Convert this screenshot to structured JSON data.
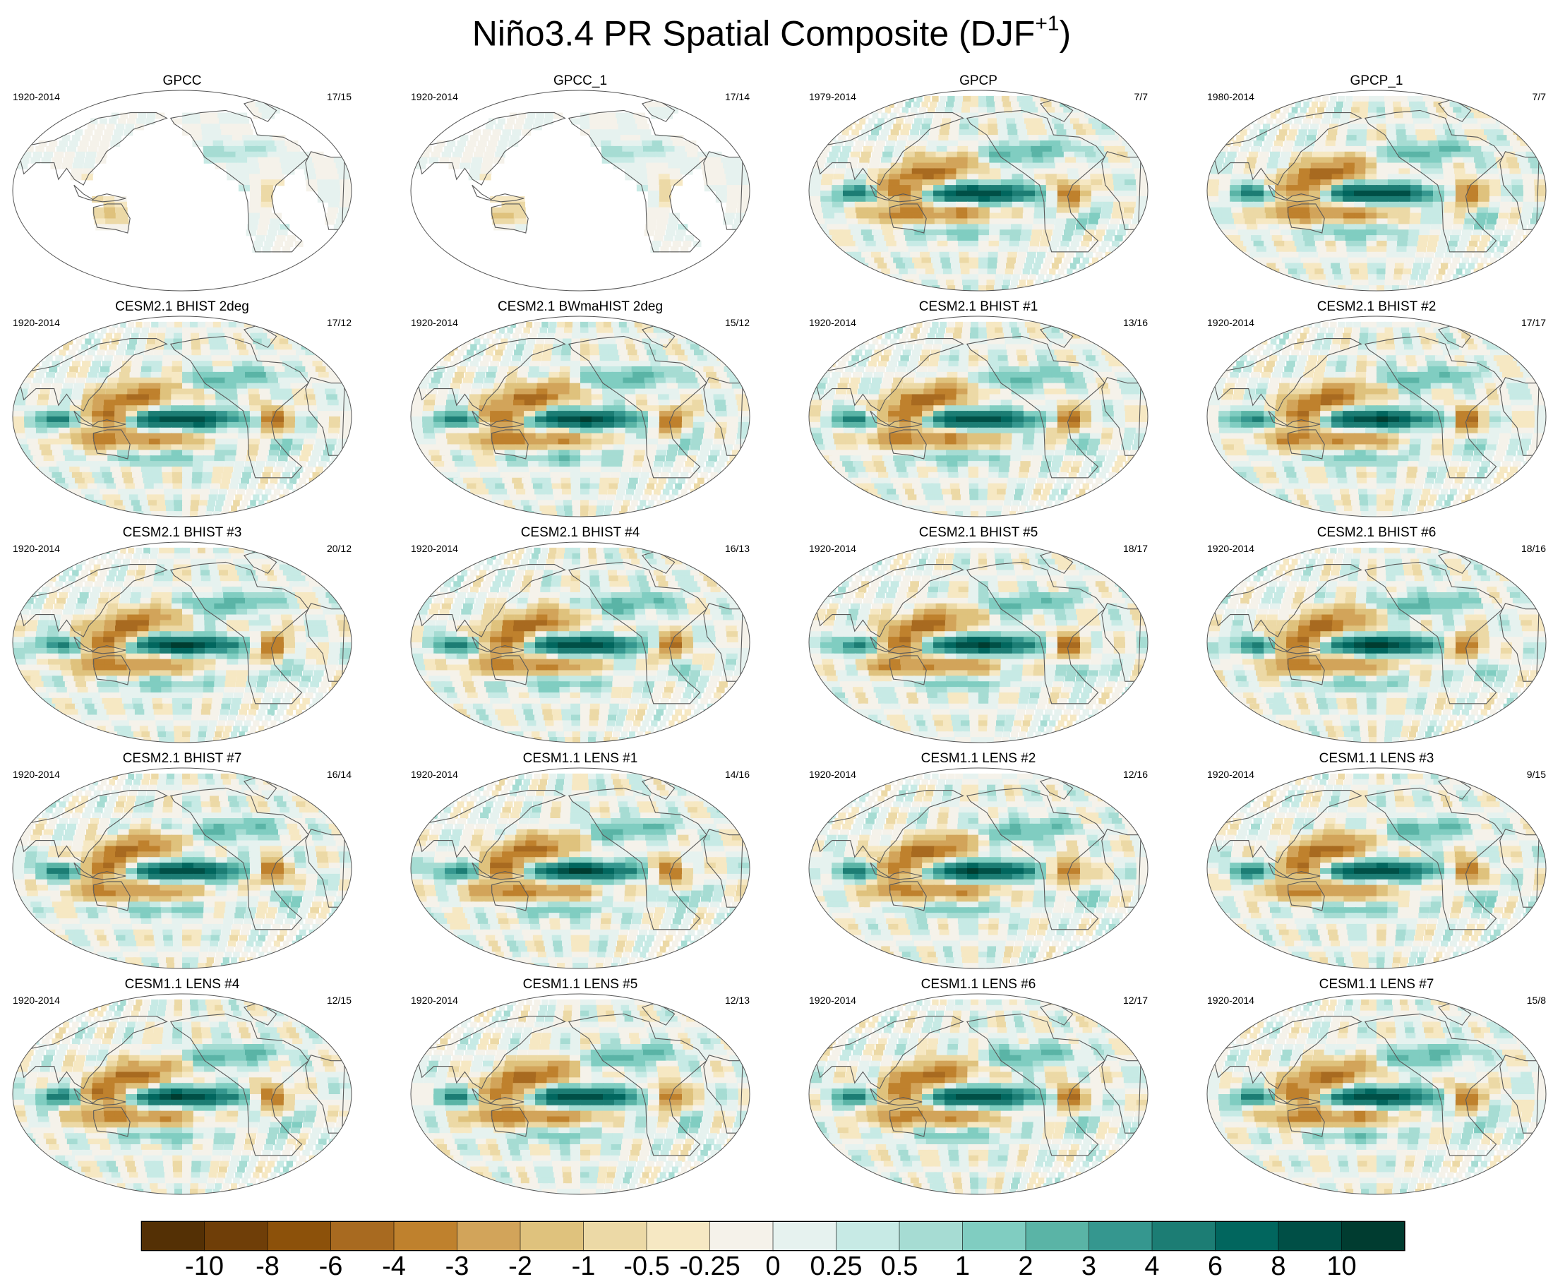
{
  "title": {
    "text": "Niño3.4 PR Spatial Composite (DJF",
    "superscript": "+1",
    "close": ")"
  },
  "panels": [
    {
      "title": "GPCC",
      "period": "1920-2014",
      "count": "17/15",
      "kind": "land"
    },
    {
      "title": "GPCC_1",
      "period": "1920-2014",
      "count": "17/14",
      "kind": "land"
    },
    {
      "title": "GPCP",
      "period": "1979-2014",
      "count": "7/7",
      "kind": "full"
    },
    {
      "title": "GPCP_1",
      "period": "1980-2014",
      "count": "7/7",
      "kind": "full"
    },
    {
      "title": "CESM2.1 BHIST 2deg",
      "period": "1920-2014",
      "count": "17/12",
      "kind": "full"
    },
    {
      "title": "CESM2.1 BWmaHIST 2deg",
      "period": "1920-2014",
      "count": "15/12",
      "kind": "full"
    },
    {
      "title": "CESM2.1 BHIST #1",
      "period": "1920-2014",
      "count": "13/16",
      "kind": "full"
    },
    {
      "title": "CESM2.1 BHIST #2",
      "period": "1920-2014",
      "count": "17/17",
      "kind": "full"
    },
    {
      "title": "CESM2.1 BHIST #3",
      "period": "1920-2014",
      "count": "20/12",
      "kind": "full"
    },
    {
      "title": "CESM2.1 BHIST #4",
      "period": "1920-2014",
      "count": "16/13",
      "kind": "full"
    },
    {
      "title": "CESM2.1 BHIST #5",
      "period": "1920-2014",
      "count": "18/17",
      "kind": "full"
    },
    {
      "title": "CESM2.1 BHIST #6",
      "period": "1920-2014",
      "count": "18/16",
      "kind": "full"
    },
    {
      "title": "CESM2.1 BHIST #7",
      "period": "1920-2014",
      "count": "16/14",
      "kind": "full"
    },
    {
      "title": "CESM1.1 LENS #1",
      "period": "1920-2014",
      "count": "14/16",
      "kind": "full"
    },
    {
      "title": "CESM1.1 LENS #2",
      "period": "1920-2014",
      "count": "12/16",
      "kind": "full"
    },
    {
      "title": "CESM1.1 LENS #3",
      "period": "1920-2014",
      "count": "9/15",
      "kind": "full"
    },
    {
      "title": "CESM1.1 LENS #4",
      "period": "1920-2014",
      "count": "12/15",
      "kind": "full"
    },
    {
      "title": "CESM1.1 LENS #5",
      "period": "1920-2014",
      "count": "12/13",
      "kind": "full"
    },
    {
      "title": "CESM1.1 LENS #6",
      "period": "1920-2014",
      "count": "12/17",
      "kind": "full"
    },
    {
      "title": "CESM1.1 LENS #7",
      "period": "1920-2014",
      "count": "15/8",
      "kind": "full"
    }
  ],
  "colorbar": {
    "labels": [
      "-10",
      "-8",
      "-6",
      "-4",
      "-3",
      "-2",
      "-1",
      "-0.5",
      "-0.25",
      "0",
      "0.25",
      "0.5",
      "1",
      "2",
      "3",
      "4",
      "6",
      "8",
      "10"
    ],
    "colors": [
      "#543005",
      "#6f3e08",
      "#8c510a",
      "#a86a20",
      "#bf812d",
      "#d2a45a",
      "#dfc27d",
      "#ecd9a6",
      "#f6e8c3",
      "#f5f2ea",
      "#e6f2ef",
      "#c7eae5",
      "#a6dcd3",
      "#80cdc1",
      "#5ab4a6",
      "#35978f",
      "#1c7d74",
      "#01665e",
      "#004f46",
      "#003c30"
    ]
  },
  "chart_data": {
    "type": "heatmap",
    "title": "Niño3.4 PR Spatial Composite (DJF+1)",
    "layout": "5 rows x 4 columns of global map panels (Robinson-like projection)",
    "levels": [
      -10,
      -8,
      -6,
      -4,
      -3,
      -2,
      -1,
      -0.5,
      -0.25,
      0,
      0.25,
      0.5,
      1,
      2,
      3,
      4,
      6,
      8,
      10
    ],
    "colorbar_placement": "bottom",
    "series": [
      {
        "name": "GPCC",
        "period": "1920-2014",
        "count": "17/15"
      },
      {
        "name": "GPCC_1",
        "period": "1920-2014",
        "count": "17/14"
      },
      {
        "name": "GPCP",
        "period": "1979-2014",
        "count": "7/7"
      },
      {
        "name": "GPCP_1",
        "period": "1980-2014",
        "count": "7/7"
      },
      {
        "name": "CESM2.1 BHIST 2deg",
        "period": "1920-2014",
        "count": "17/12"
      },
      {
        "name": "CESM2.1 BWmaHIST 2deg",
        "period": "1920-2014",
        "count": "15/12"
      },
      {
        "name": "CESM2.1 BHIST #1",
        "period": "1920-2014",
        "count": "13/16"
      },
      {
        "name": "CESM2.1 BHIST #2",
        "period": "1920-2014",
        "count": "17/17"
      },
      {
        "name": "CESM2.1 BHIST #3",
        "period": "1920-2014",
        "count": "20/12"
      },
      {
        "name": "CESM2.1 BHIST #4",
        "period": "1920-2014",
        "count": "16/13"
      },
      {
        "name": "CESM2.1 BHIST #5",
        "period": "1920-2014",
        "count": "18/17"
      },
      {
        "name": "CESM2.1 BHIST #6",
        "period": "1920-2014",
        "count": "18/16"
      },
      {
        "name": "CESM2.1 BHIST #7",
        "period": "1920-2014",
        "count": "16/14"
      },
      {
        "name": "CESM1.1 LENS #1",
        "period": "1920-2014",
        "count": "14/16"
      },
      {
        "name": "CESM1.1 LENS #2",
        "period": "1920-2014",
        "count": "12/16"
      },
      {
        "name": "CESM1.1 LENS #3",
        "period": "1920-2014",
        "count": "9/15"
      },
      {
        "name": "CESM1.1 LENS #4",
        "period": "1920-2014",
        "count": "12/15"
      },
      {
        "name": "CESM1.1 LENS #5",
        "period": "1920-2014",
        "count": "12/13"
      },
      {
        "name": "CESM1.1 LENS #6",
        "period": "1920-2014",
        "count": "12/17"
      },
      {
        "name": "CESM1.1 LENS #7",
        "period": "1920-2014",
        "count": "15/8"
      }
    ]
  }
}
